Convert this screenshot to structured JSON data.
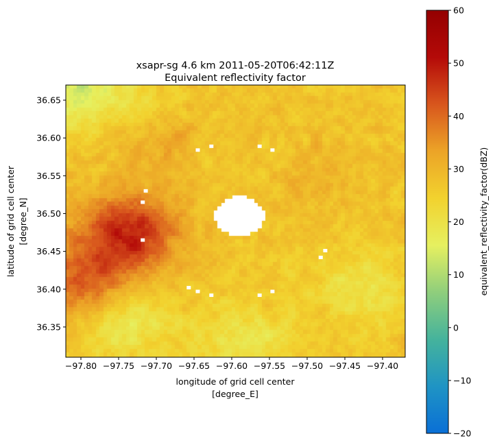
{
  "chart_data": {
    "type": "heatmap",
    "title_line1": "xsapr-sg 4.6 km 2011-05-20T06:42:11Z",
    "title_line2": "Equivalent reflectivity factor",
    "xlabel_line1": "longitude of grid cell center",
    "xlabel_line2": "[degree_E]",
    "ylabel_line1": "latitude of grid cell center",
    "ylabel_line2": "[degree_N]",
    "xlim": [
      -97.82,
      -97.37
    ],
    "ylim": [
      36.31,
      36.67
    ],
    "xticks": [
      -97.8,
      -97.75,
      -97.7,
      -97.65,
      -97.6,
      -97.55,
      -97.5,
      -97.45,
      -97.4
    ],
    "xtick_labels": [
      "−97.80",
      "−97.75",
      "−97.70",
      "−97.65",
      "−97.60",
      "−97.55",
      "−97.50",
      "−97.45",
      "−97.40"
    ],
    "yticks": [
      36.35,
      36.4,
      36.45,
      36.5,
      36.55,
      36.6,
      36.65
    ],
    "ytick_labels": [
      "36.35",
      "36.40",
      "36.45",
      "36.50",
      "36.55",
      "36.60",
      "36.65"
    ],
    "colorbar": {
      "label": "equivalent_reflectivity_factor(dBZ)",
      "range": [
        -20,
        60
      ],
      "ticks": [
        -20,
        -10,
        0,
        10,
        20,
        30,
        40,
        50,
        60
      ],
      "tick_labels": [
        "−20",
        "−10",
        "0",
        "10",
        "20",
        "30",
        "40",
        "50",
        "60"
      ],
      "colormap": "HomeyerRainbow",
      "stops": [
        "#0a6fd6",
        "#1f94c4",
        "#45b39c",
        "#8fce7c",
        "#e6f060",
        "#f2d22e",
        "#eca427",
        "#d8561d",
        "#b40a08",
        "#940000"
      ]
    },
    "field": {
      "background_dBZ": 27,
      "no_data_center": [
        -97.59,
        36.497
      ],
      "no_data_radius_deg": 0.027,
      "features": [
        {
          "name": "heavy core SW",
          "lon": -97.79,
          "lat": 36.41,
          "dBZ": 42
        },
        {
          "name": "heavy band W",
          "lon": -97.75,
          "lat": 36.48,
          "dBZ": 38
        },
        {
          "name": "heavy band W2",
          "lon": -97.72,
          "lat": 36.47,
          "dBZ": 38
        },
        {
          "name": "moderate NW",
          "lon": -97.7,
          "lat": 36.6,
          "dBZ": 33
        },
        {
          "name": "light N",
          "lon": -97.72,
          "lat": 36.64,
          "dBZ": 22
        },
        {
          "name": "weak NW corner",
          "lon": -97.81,
          "lat": 36.665,
          "dBZ": 14
        },
        {
          "name": "weak S",
          "lon": -97.74,
          "lat": 36.36,
          "dBZ": 17
        },
        {
          "name": "weak SE",
          "lon": -97.58,
          "lat": 36.33,
          "dBZ": 19
        },
        {
          "name": "weak E",
          "lon": -97.43,
          "lat": 36.4,
          "dBZ": 20
        },
        {
          "name": "moderate E",
          "lon": -97.48,
          "lat": 36.55,
          "dBZ": 30
        }
      ]
    },
    "missing_pixels": [
      [
        -97.645,
        36.584
      ],
      [
        -97.627,
        36.589
      ],
      [
        -97.563,
        36.589
      ],
      [
        -97.546,
        36.584
      ],
      [
        -97.714,
        36.53
      ],
      [
        -97.718,
        36.515
      ],
      [
        -97.718,
        36.465
      ],
      [
        -97.476,
        36.451
      ],
      [
        -97.482,
        36.442
      ],
      [
        -97.657,
        36.402
      ],
      [
        -97.645,
        36.397
      ],
      [
        -97.627,
        36.392
      ],
      [
        -97.563,
        36.392
      ],
      [
        -97.546,
        36.397
      ]
    ]
  }
}
